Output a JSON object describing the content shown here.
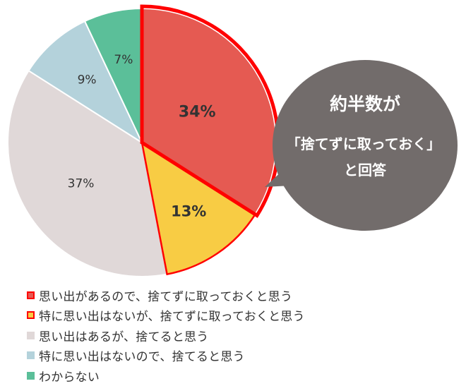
{
  "chart_data": {
    "type": "pie",
    "categories": [
      "思い出があるので、捨てずに取っておくと思う",
      "特に思い出はないが、捨てずに取っておくと思う",
      "思い出はあるが、捨てると思う",
      "特に思い出はないので、捨てると思う",
      "わからない"
    ],
    "values": [
      34,
      13,
      37,
      9,
      7
    ],
    "value_labels": [
      "34%",
      "13%",
      "37%",
      "9%",
      "7%"
    ],
    "colors": [
      "#e55a52",
      "#f8cc44",
      "#e0d8d8",
      "#b4d2db",
      "#5bbf99"
    ],
    "highlight_color": "#ff0000",
    "highlighted": [
      true,
      true,
      false,
      false,
      false
    ],
    "start_angle_deg": 0,
    "direction": "clockwise",
    "legend_position": "bottom-left"
  },
  "callout": {
    "line1": "約半数が",
    "line2": "「捨てずに取っておく」",
    "line3": "と回答",
    "color": "#726c6b"
  }
}
